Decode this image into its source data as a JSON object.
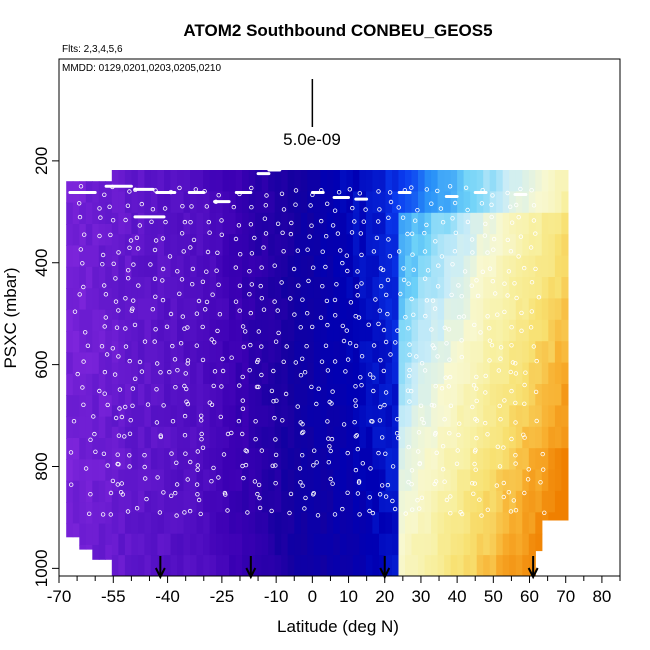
{
  "chart_data": {
    "type": "heatmap",
    "title": "ATOM2 Southbound CONBEU_GEOS5",
    "flights_label": "Flts: 2,3,4,5,6",
    "dates_label": "MMDD: 0129,0201,0203,0205,0210",
    "xlabel": "Latitude (deg N)",
    "ylabel": "PSXC (mbar)",
    "xlim": [
      -70,
      85
    ],
    "ylim": [
      1015,
      0
    ],
    "x_ticks_major": [
      -70,
      -55,
      -40,
      -25,
      -10,
      0,
      10,
      20,
      30,
      40,
      50,
      60,
      70,
      80
    ],
    "x_ticks_minor": [
      -65,
      -60,
      -50,
      -45,
      -35,
      -30,
      -20,
      -15,
      -5,
      5,
      15,
      25,
      35,
      45,
      55,
      65,
      75,
      85
    ],
    "y_ticks": [
      200,
      400,
      600,
      800,
      1000
    ],
    "scale_bar_label": "5.0e-09",
    "scale_bar_x": 0,
    "arrows_lat": [
      -42,
      -17,
      20,
      61
    ],
    "color_scale": [
      "#8a2be2",
      "#5a14c8",
      "#3c00b4",
      "#1400a0",
      "#0000b4",
      "#0a3cf0",
      "#2890f8",
      "#6ed2f8",
      "#c8ecf8",
      "#f8f8d0",
      "#f8f0a0",
      "#f8e070",
      "#f8b030",
      "#f08000"
    ],
    "field_note": "concentration field, low (purple) to high (orange)"
  }
}
